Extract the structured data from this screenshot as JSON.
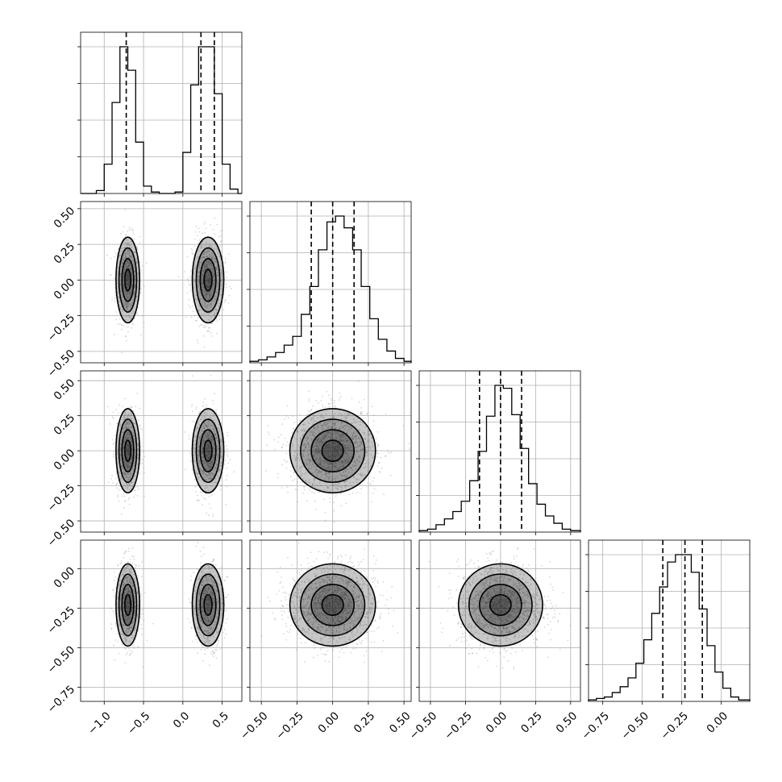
{
  "chart_data": {
    "type": "corner",
    "title": "",
    "n_params": 4,
    "colors": {
      "line": "#000000",
      "grid": "#b0b0b0",
      "scatter": "#8c8c8c",
      "background": "#ffffff"
    },
    "grid": true,
    "axes": [
      {
        "range": [
          -1.3,
          0.75
        ],
        "ticks": [
          -1.0,
          -0.5,
          0.0,
          0.5
        ],
        "tick_labels": [
          "−1.0",
          "−0.5",
          "0.0",
          "0.5"
        ]
      },
      {
        "range": [
          -0.58,
          0.55
        ],
        "ticks": [
          -0.5,
          -0.25,
          0.0,
          0.25,
          0.5
        ],
        "tick_labels": [
          "−0.50",
          "−0.25",
          "0.00",
          "0.25",
          "0.50"
        ]
      },
      {
        "range": [
          -0.58,
          0.57
        ],
        "ticks": [
          -0.5,
          -0.25,
          0.0,
          0.25,
          0.5
        ],
        "tick_labels": [
          "−0.50",
          "−0.25",
          "0.00",
          "0.25",
          "0.50"
        ]
      },
      {
        "range": [
          -0.84,
          0.18
        ],
        "ticks": [
          -0.75,
          -0.5,
          -0.25,
          0.0
        ],
        "tick_labels": [
          "−0.75",
          "−0.50",
          "−0.25",
          "0.00"
        ]
      }
    ],
    "histograms": [
      {
        "param": 0,
        "bins": [
          -1.3,
          -1.2,
          -1.1,
          -1.0,
          -0.9,
          -0.8,
          -0.7,
          -0.6,
          -0.5,
          -0.4,
          -0.3,
          -0.2,
          -0.1,
          0.0,
          0.1,
          0.2,
          0.3,
          0.4,
          0.5,
          0.6,
          0.7,
          0.75
        ],
        "counts": [
          0,
          0,
          2,
          20,
          62,
          100,
          84,
          35,
          5,
          1,
          0,
          0,
          1,
          28,
          74,
          100,
          100,
          68,
          20,
          3,
          0
        ],
        "quantiles": [
          -0.72,
          0.23,
          0.4
        ]
      },
      {
        "param": 1,
        "bins": [
          -0.58,
          -0.52,
          -0.46,
          -0.4,
          -0.34,
          -0.28,
          -0.22,
          -0.16,
          -0.1,
          -0.04,
          0.02,
          0.08,
          0.14,
          0.2,
          0.26,
          0.32,
          0.38,
          0.44,
          0.5,
          0.55
        ],
        "counts": [
          1,
          2,
          4,
          7,
          12,
          18,
          33,
          52,
          77,
          96,
          100,
          92,
          77,
          52,
          30,
          16,
          8,
          3,
          1
        ],
        "quantiles": [
          -0.15,
          0.0,
          0.15
        ]
      },
      {
        "param": 2,
        "bins": [
          -0.58,
          -0.52,
          -0.46,
          -0.4,
          -0.34,
          -0.28,
          -0.22,
          -0.16,
          -0.1,
          -0.04,
          0.02,
          0.08,
          0.14,
          0.2,
          0.26,
          0.32,
          0.38,
          0.44,
          0.5,
          0.57
        ],
        "counts": [
          1,
          2,
          5,
          9,
          14,
          21,
          35,
          55,
          79,
          100,
          98,
          80,
          57,
          33,
          19,
          11,
          6,
          2,
          1
        ],
        "quantiles": [
          -0.15,
          0.0,
          0.15
        ]
      },
      {
        "param": 3,
        "bins": [
          -0.84,
          -0.79,
          -0.74,
          -0.69,
          -0.64,
          -0.59,
          -0.54,
          -0.49,
          -0.44,
          -0.39,
          -0.34,
          -0.29,
          -0.24,
          -0.19,
          -0.14,
          -0.09,
          -0.04,
          0.01,
          0.06,
          0.11,
          0.18
        ],
        "counts": [
          1,
          2,
          3,
          6,
          10,
          16,
          26,
          42,
          60,
          78,
          95,
          100,
          100,
          88,
          63,
          38,
          20,
          9,
          3,
          1
        ],
        "quantiles": [
          -0.37,
          -0.23,
          -0.12
        ]
      }
    ],
    "panels_2d": [
      {
        "x": 0,
        "y": 1,
        "components": [
          {
            "cx": -0.7,
            "cy": 0.0,
            "sx": 0.075,
            "sy": 0.15,
            "w": 0.5
          },
          {
            "cx": 0.32,
            "cy": 0.0,
            "sx": 0.1,
            "sy": 0.15,
            "w": 0.5
          }
        ]
      },
      {
        "x": 0,
        "y": 2,
        "components": [
          {
            "cx": -0.7,
            "cy": 0.0,
            "sx": 0.075,
            "sy": 0.15,
            "w": 0.5
          },
          {
            "cx": 0.32,
            "cy": 0.0,
            "sx": 0.1,
            "sy": 0.15,
            "w": 0.5
          }
        ]
      },
      {
        "x": 0,
        "y": 3,
        "components": [
          {
            "cx": -0.7,
            "cy": -0.23,
            "sx": 0.075,
            "sy": 0.13,
            "w": 0.5
          },
          {
            "cx": 0.32,
            "cy": -0.23,
            "sx": 0.1,
            "sy": 0.13,
            "w": 0.5
          }
        ]
      },
      {
        "x": 1,
        "y": 2,
        "components": [
          {
            "cx": 0.0,
            "cy": 0.0,
            "sx": 0.15,
            "sy": 0.15,
            "w": 1.0
          }
        ]
      },
      {
        "x": 1,
        "y": 3,
        "components": [
          {
            "cx": 0.0,
            "cy": -0.23,
            "sx": 0.15,
            "sy": 0.13,
            "w": 1.0
          }
        ]
      },
      {
        "x": 2,
        "y": 3,
        "components": [
          {
            "cx": 0.0,
            "cy": -0.23,
            "sx": 0.15,
            "sy": 0.13,
            "w": 1.0
          }
        ]
      }
    ],
    "contour_levels": [
      0.118,
      0.393,
      0.675,
      0.865
    ]
  }
}
